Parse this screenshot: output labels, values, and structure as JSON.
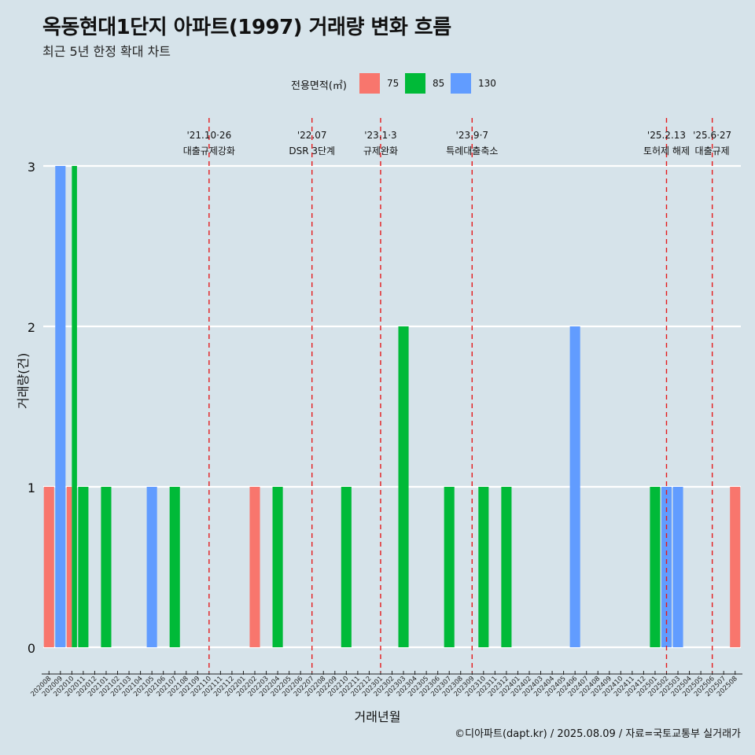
{
  "title": "옥동현대1단지 아파트(1997) 거래량 변화 흐름",
  "subtitle": "최근 5년 한정 확대 차트",
  "caption": "©디아파트(dapt.kr) / 2025.08.09 / 자료=국토교통부 실거래가",
  "legend": {
    "title": "전용면적(㎡)",
    "items": [
      {
        "label": "75",
        "color": "#f8766d"
      },
      {
        "label": "85",
        "color": "#00ba38"
      },
      {
        "label": "130",
        "color": "#619cff"
      }
    ]
  },
  "chart_data": {
    "type": "bar",
    "xlabel": "거래년월",
    "ylabel": "거래량(건)",
    "ylim": [
      0,
      3
    ],
    "yticks": [
      0,
      1,
      2,
      3
    ],
    "grid": true,
    "legend_position": "top",
    "categories": [
      "202008",
      "202009",
      "202010",
      "202011",
      "202012",
      "202101",
      "202102",
      "202103",
      "202104",
      "202105",
      "202106",
      "202107",
      "202108",
      "202109",
      "202110",
      "202111",
      "202112",
      "202201",
      "202202",
      "202203",
      "202204",
      "202205",
      "202206",
      "202207",
      "202208",
      "202209",
      "202210",
      "202211",
      "202212",
      "202301",
      "202302",
      "202303",
      "202304",
      "202305",
      "202306",
      "202307",
      "202308",
      "202309",
      "202310",
      "202311",
      "202312",
      "202401",
      "202402",
      "202403",
      "202404",
      "202405",
      "202406",
      "202407",
      "202408",
      "202409",
      "202410",
      "202411",
      "202412",
      "202501",
      "202502",
      "202503",
      "202504",
      "202505",
      "202506",
      "202507",
      "202508"
    ],
    "bars": [
      {
        "x": "202008",
        "series": "75",
        "value": 1
      },
      {
        "x": "202009",
        "series": "130",
        "value": 3
      },
      {
        "x": "202010",
        "series": "75",
        "value": 1
      },
      {
        "x": "202010",
        "series": "85",
        "value": 3
      },
      {
        "x": "202011",
        "series": "85",
        "value": 1
      },
      {
        "x": "202101",
        "series": "85",
        "value": 1
      },
      {
        "x": "202105",
        "series": "130",
        "value": 1
      },
      {
        "x": "202107",
        "series": "85",
        "value": 1
      },
      {
        "x": "202202",
        "series": "75",
        "value": 1
      },
      {
        "x": "202204",
        "series": "85",
        "value": 1
      },
      {
        "x": "202210",
        "series": "85",
        "value": 1
      },
      {
        "x": "202303",
        "series": "85",
        "value": 2
      },
      {
        "x": "202307",
        "series": "85",
        "value": 1
      },
      {
        "x": "202310",
        "series": "85",
        "value": 1
      },
      {
        "x": "202312",
        "series": "85",
        "value": 1
      },
      {
        "x": "202406",
        "series": "130",
        "value": 2
      },
      {
        "x": "202501",
        "series": "85",
        "value": 1
      },
      {
        "x": "202502",
        "series": "130",
        "value": 1
      },
      {
        "x": "202503",
        "series": "130",
        "value": 1
      },
      {
        "x": "202508",
        "series": "75",
        "value": 1
      }
    ],
    "annotations": [
      {
        "x": "202110",
        "date": "'21.10·26",
        "label": "대출규제강화"
      },
      {
        "x": "202207",
        "date": "'22.07",
        "label": "DSR 3단계"
      },
      {
        "x": "202301",
        "date": "'23.1·3",
        "label": "규제완화"
      },
      {
        "x": "202309",
        "date": "'23.9·7",
        "label": "특례대출축소"
      },
      {
        "x": "202502",
        "date": "'25.2.13",
        "label": "토허제 해제"
      },
      {
        "x": "202506",
        "date": "'25.6·27",
        "label": "대출규제"
      }
    ]
  }
}
